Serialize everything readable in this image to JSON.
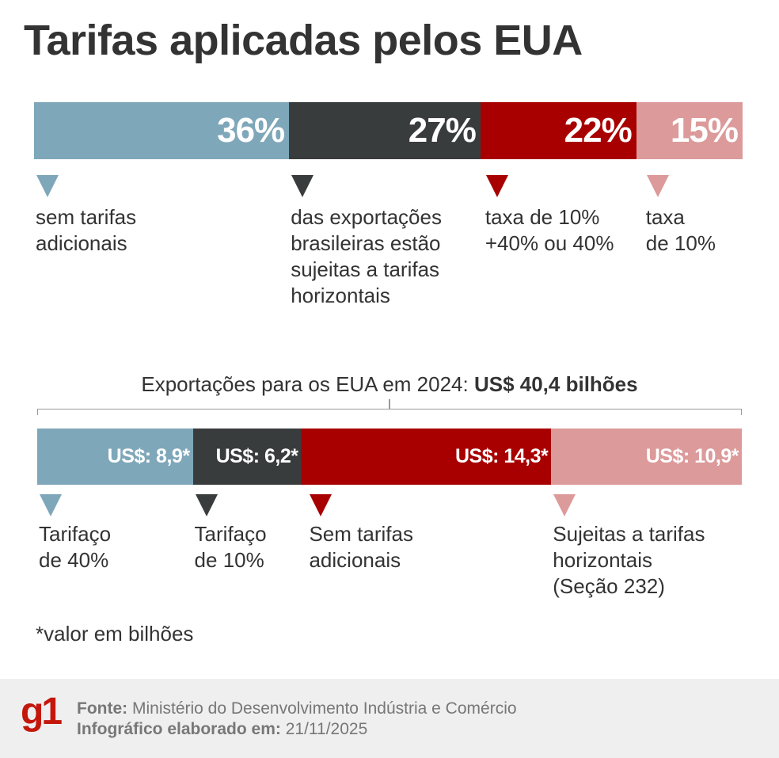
{
  "title": "Tarifas aplicadas pelos EUA",
  "chart_data": [
    {
      "type": "bar",
      "orientation": "horizontal-stacked",
      "unit": "%",
      "values": [
        36,
        27,
        22,
        15
      ],
      "value_labels": [
        "36%",
        "27%",
        "22%",
        "15%"
      ],
      "categories": [
        "sem tarifas\nadicionais",
        "das exportações\nbrasileiras estão\nsujeitas a tarifas\nhorizontais",
        "taxa de 10%\n+40% ou 40%",
        "taxa\nde 10%"
      ],
      "colors": [
        "#7fa7ba",
        "#393c3d",
        "#a80000",
        "#dc9a9a"
      ]
    },
    {
      "type": "bar",
      "orientation": "horizontal-stacked",
      "title_regular": "Exportações para os EUA em 2024: ",
      "title_bold": "US$ 40,4 bilhões",
      "values": [
        8.9,
        6.2,
        14.3,
        10.9
      ],
      "value_labels": [
        "US$: 8,9*",
        "US$: 6,2*",
        "US$: 14,3*",
        "US$: 10,9*"
      ],
      "categories": [
        "Tarifaço\nde 40%",
        "Tarifaço\nde 10%",
        "Sem tarifas\nadicionais",
        "Sujeitas a tarifas\nhorizontais\n(Seção 232)"
      ],
      "colors": [
        "#7fa7ba",
        "#393c3d",
        "#a80000",
        "#dc9a9a"
      ]
    }
  ],
  "note": "*valor em bilhões",
  "footer": {
    "logo": "g1",
    "source_label": "Fonte:",
    "source": " Ministério do Desenvolvimento Indústria e Comércio",
    "date_label": "Infográfico elaborado em:",
    "date": " 21/11/2025"
  }
}
